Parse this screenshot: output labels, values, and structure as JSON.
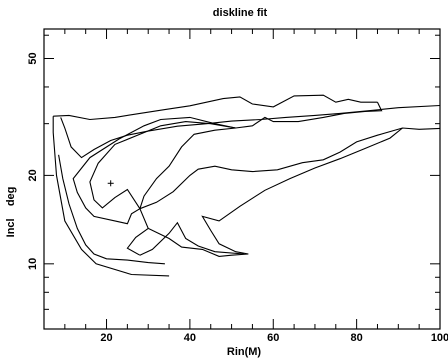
{
  "chart_data": {
    "type": "line",
    "title": "diskline fit",
    "xlabel": "Rin(M)",
    "ylabel": "Incl    deg",
    "xlim": [
      5,
      100
    ],
    "ylim": [
      6,
      63
    ],
    "x_ticks": [
      20,
      40,
      60,
      80,
      100
    ],
    "y_ticks": [
      10,
      20,
      50
    ],
    "best_fit": {
      "x": 21,
      "y": 18.8,
      "marker": "+"
    },
    "series": [
      {
        "values": [
          [
            9,
            31.5
          ],
          [
            10,
            29
          ],
          [
            11.5,
            25
          ],
          [
            14,
            23
          ],
          [
            17,
            24.5
          ],
          [
            21,
            26.3
          ],
          [
            25,
            27.4
          ],
          [
            30,
            28.3
          ],
          [
            37,
            29.4
          ],
          [
            44,
            30
          ],
          [
            50,
            30.6
          ],
          [
            57,
            31
          ],
          [
            63,
            31.5
          ],
          [
            70,
            32
          ],
          [
            76,
            32.5
          ],
          [
            83,
            33.2
          ],
          [
            90,
            34
          ],
          [
            100,
            34.6
          ]
        ]
      },
      {
        "values": [
          [
            8.5,
            23.5
          ],
          [
            9.5,
            19.5
          ],
          [
            11,
            16
          ],
          [
            13,
            13.2
          ],
          [
            15,
            11.6
          ],
          [
            17,
            10.8
          ],
          [
            20,
            10.4
          ],
          [
            25,
            10.3
          ],
          [
            30,
            10.1
          ],
          [
            34,
            10
          ]
        ]
      },
      {
        "values": [
          [
            7.2,
            31.8
          ],
          [
            7.2,
            28
          ],
          [
            8,
            20
          ],
          [
            10,
            14
          ],
          [
            14,
            11.2
          ],
          [
            17.5,
            10
          ],
          [
            26,
            9.2
          ],
          [
            35,
            9.1
          ]
        ]
      },
      {
        "values": [
          [
            7.2,
            31.8
          ],
          [
            11,
            32
          ],
          [
            16,
            31
          ],
          [
            22,
            31.5
          ],
          [
            28,
            32.5
          ],
          [
            34,
            33.5
          ],
          [
            40,
            34.5
          ],
          [
            48,
            36.5
          ],
          [
            52,
            37
          ],
          [
            55,
            35
          ],
          [
            60,
            34.2
          ],
          [
            65,
            37.3
          ],
          [
            72,
            37.5
          ],
          [
            75,
            35.5
          ],
          [
            78,
            36.3
          ],
          [
            81,
            35.5
          ],
          [
            85,
            35.5
          ]
        ]
      },
      {
        "values": [
          [
            85,
            35.5
          ],
          [
            86,
            33.2
          ],
          [
            82,
            33
          ],
          [
            77,
            32.5
          ],
          [
            72,
            31.5
          ],
          [
            66,
            30.5
          ],
          [
            60,
            30.5
          ],
          [
            58,
            31.5
          ],
          [
            55,
            29.5
          ],
          [
            51,
            29
          ],
          [
            46,
            30
          ],
          [
            40,
            31.5
          ],
          [
            33,
            31
          ],
          [
            29,
            29.5
          ],
          [
            23,
            26.6
          ],
          [
            16,
            23
          ],
          [
            12,
            19.5
          ],
          [
            13,
            17.5
          ],
          [
            15,
            15.5
          ],
          [
            17,
            14.5
          ],
          [
            22,
            14
          ],
          [
            25,
            13.7
          ],
          [
            26,
            14.8
          ],
          [
            28,
            15.4
          ]
        ]
      },
      {
        "values": [
          [
            28,
            15.4
          ],
          [
            32,
            16.2
          ],
          [
            36,
            17.6
          ],
          [
            40,
            20
          ],
          [
            42,
            21
          ],
          [
            46,
            21.5
          ],
          [
            50,
            20.9
          ],
          [
            55,
            20.6
          ],
          [
            61,
            20.9
          ],
          [
            67,
            22.1
          ],
          [
            72,
            22.6
          ],
          [
            76,
            24
          ],
          [
            80,
            26
          ],
          [
            85,
            27.4
          ],
          [
            91,
            29
          ],
          [
            95,
            28.7
          ],
          [
            100,
            28.9
          ]
        ]
      },
      {
        "values": [
          [
            28,
            15.4
          ],
          [
            30,
            13.2
          ],
          [
            35,
            12.2
          ],
          [
            38,
            11.4
          ],
          [
            43,
            11.2
          ],
          [
            47,
            10.6
          ],
          [
            50,
            10.7
          ],
          [
            54,
            10.8
          ]
        ]
      },
      {
        "values": [
          [
            54,
            10.8
          ],
          [
            51,
            11
          ],
          [
            47,
            11.7
          ],
          [
            45,
            13
          ],
          [
            43,
            14.5
          ],
          [
            47,
            14
          ],
          [
            52,
            15.7
          ],
          [
            58,
            17.8
          ],
          [
            64,
            19.5
          ],
          [
            70,
            21.2
          ],
          [
            76,
            22.8
          ],
          [
            82,
            24.7
          ],
          [
            88,
            26.8
          ],
          [
            91,
            29
          ]
        ]
      },
      {
        "values": [
          [
            28,
            15.4
          ],
          [
            29,
            17
          ],
          [
            32,
            19.5
          ],
          [
            35,
            21.5
          ],
          [
            38,
            25
          ],
          [
            41,
            27.6
          ],
          [
            46,
            28.5
          ],
          [
            51,
            29
          ],
          [
            45,
            30
          ],
          [
            39,
            30.5
          ],
          [
            33,
            29.5
          ],
          [
            28,
            27.6
          ],
          [
            22,
            25.5
          ],
          [
            18,
            22
          ],
          [
            16,
            19
          ],
          [
            17,
            16.5
          ],
          [
            19,
            15.5
          ],
          [
            22,
            16.8
          ],
          [
            25,
            17.9
          ],
          [
            28,
            15.4
          ]
        ]
      },
      {
        "values": [
          [
            28,
            10.7
          ],
          [
            31,
            11.2
          ],
          [
            35,
            12.7
          ],
          [
            37,
            13.8
          ],
          [
            39,
            12.2
          ],
          [
            42,
            11.5
          ],
          [
            46,
            11
          ],
          [
            53,
            10.8
          ]
        ]
      },
      {
        "values": [
          [
            28,
            10.7
          ],
          [
            25,
            11.3
          ],
          [
            27,
            12.3
          ],
          [
            30,
            13.2
          ]
        ]
      }
    ]
  }
}
